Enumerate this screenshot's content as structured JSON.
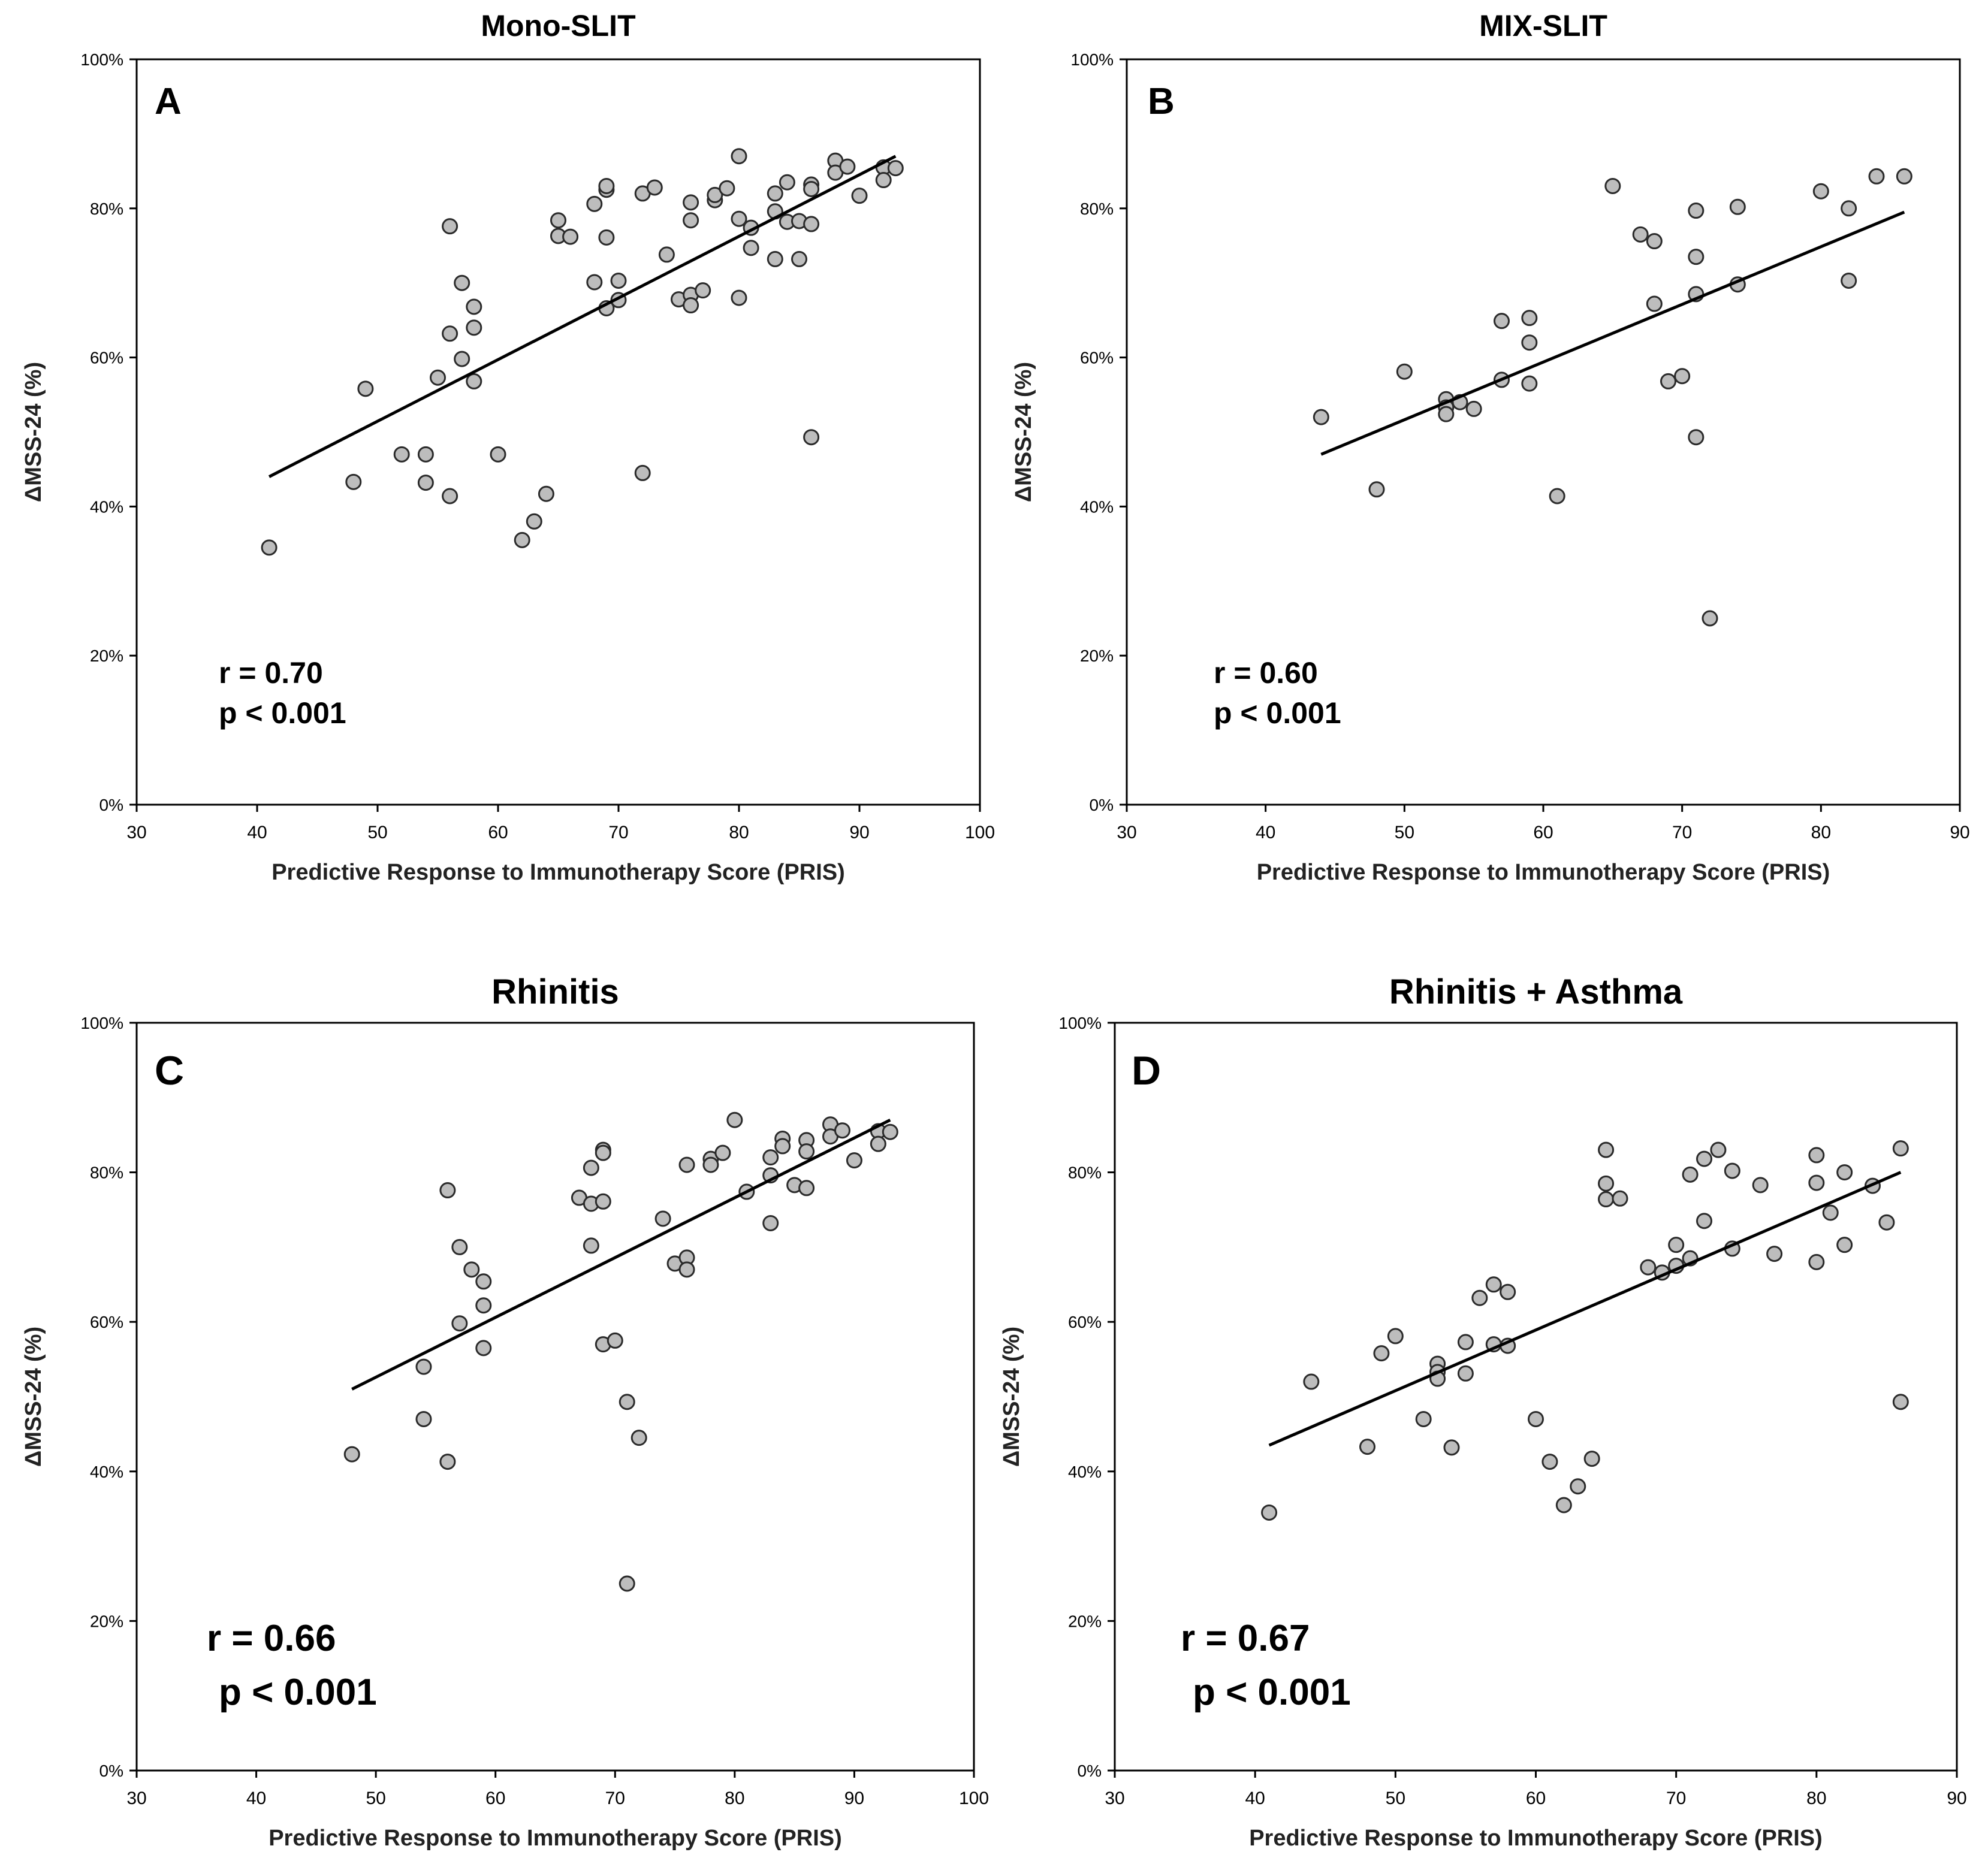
{
  "figure_name": "pris-correlation-figure",
  "chart_data": [
    {
      "id": "A",
      "type": "scatter",
      "title": "Mono-SLIT",
      "panel_letter": "A",
      "xlabel": "Predictive Response to Immunotherapy Score (PRIS)",
      "ylabel": "ΔMSS-24 (%)",
      "xlim": [
        30,
        100
      ],
      "ylim": [
        0,
        100
      ],
      "xticks": [
        30,
        40,
        50,
        60,
        70,
        80,
        90,
        100
      ],
      "yticks": [
        0,
        20,
        40,
        60,
        80,
        100
      ],
      "ytick_labels": [
        "0%",
        "20%",
        "40%",
        "60%",
        "80%",
        "100%"
      ],
      "stat_r": "r = 0.70",
      "stat_p": "p < 0.001",
      "trendline": {
        "x": [
          41,
          93
        ],
        "y": [
          44,
          87
        ]
      },
      "points": [
        [
          41,
          34.5
        ],
        [
          48,
          43.3
        ],
        [
          49,
          55.8
        ],
        [
          52,
          47
        ],
        [
          54,
          47
        ],
        [
          54,
          43.2
        ],
        [
          55,
          57.3
        ],
        [
          56,
          41.4
        ],
        [
          56,
          63.2
        ],
        [
          56,
          77.6
        ],
        [
          57,
          59.8
        ],
        [
          57,
          70
        ],
        [
          58,
          56.8
        ],
        [
          58,
          64
        ],
        [
          58,
          66.8
        ],
        [
          60,
          47
        ],
        [
          62,
          35.5
        ],
        [
          63,
          38
        ],
        [
          64,
          41.7
        ],
        [
          65,
          78.4
        ],
        [
          65,
          76.3
        ],
        [
          66,
          76.2
        ],
        [
          68,
          80.6
        ],
        [
          68,
          70.1
        ],
        [
          69,
          82.5
        ],
        [
          69,
          83
        ],
        [
          69,
          76.1
        ],
        [
          69,
          66.6
        ],
        [
          70,
          67.7
        ],
        [
          70,
          70.3
        ],
        [
          72,
          44.5
        ],
        [
          72,
          82
        ],
        [
          73,
          82.8
        ],
        [
          74,
          73.8
        ],
        [
          75,
          67.8
        ],
        [
          76,
          78.4
        ],
        [
          76,
          80.8
        ],
        [
          76,
          68.4
        ],
        [
          76,
          67
        ],
        [
          77,
          69
        ],
        [
          78,
          81.1
        ],
        [
          78,
          81.8
        ],
        [
          79,
          82.7
        ],
        [
          80,
          87
        ],
        [
          80,
          78.6
        ],
        [
          80,
          68
        ],
        [
          81,
          77.4
        ],
        [
          81,
          74.7
        ],
        [
          83,
          82
        ],
        [
          83,
          79.6
        ],
        [
          83,
          73.2
        ],
        [
          84,
          83.5
        ],
        [
          84,
          78.2
        ],
        [
          85,
          78.3
        ],
        [
          85,
          73.2
        ],
        [
          86,
          83.2
        ],
        [
          86,
          82.6
        ],
        [
          86,
          77.9
        ],
        [
          86,
          49.3
        ],
        [
          88,
          86.4
        ],
        [
          88,
          84.8
        ],
        [
          89,
          85.6
        ],
        [
          90,
          81.7
        ],
        [
          92,
          85.5
        ],
        [
          92,
          83.8
        ],
        [
          93,
          85.4
        ]
      ]
    },
    {
      "id": "B",
      "type": "scatter",
      "title": "MIX-SLIT",
      "panel_letter": "B",
      "xlabel": "Predictive Response to Immunotherapy Score (PRIS)",
      "ylabel": "ΔMSS-24 (%)",
      "xlim": [
        30,
        90
      ],
      "ylim": [
        0,
        100
      ],
      "xticks": [
        30,
        40,
        50,
        60,
        70,
        80,
        90
      ],
      "yticks": [
        0,
        20,
        40,
        60,
        80,
        100
      ],
      "ytick_labels": [
        "0%",
        "20%",
        "40%",
        "60%",
        "80%",
        "100%"
      ],
      "stat_r": "r = 0.60",
      "stat_p": "p < 0.001",
      "trendline": {
        "x": [
          44,
          86
        ],
        "y": [
          47,
          79.5
        ]
      },
      "points": [
        [
          44,
          52
        ],
        [
          48,
          42.3
        ],
        [
          50,
          58.1
        ],
        [
          53,
          54.4
        ],
        [
          53,
          53.3
        ],
        [
          53,
          52.4
        ],
        [
          54,
          54
        ],
        [
          55,
          53.1
        ],
        [
          57,
          64.9
        ],
        [
          57,
          57
        ],
        [
          59,
          65.3
        ],
        [
          59,
          62
        ],
        [
          59,
          56.5
        ],
        [
          61,
          41.4
        ],
        [
          65,
          83
        ],
        [
          67,
          76.5
        ],
        [
          68,
          75.6
        ],
        [
          68,
          67.2
        ],
        [
          69,
          56.8
        ],
        [
          70,
          57.5
        ],
        [
          71,
          79.7
        ],
        [
          71,
          73.5
        ],
        [
          71,
          68.5
        ],
        [
          71,
          49.3
        ],
        [
          72,
          25
        ],
        [
          74,
          80.2
        ],
        [
          74,
          69.8
        ],
        [
          80,
          82.3
        ],
        [
          82,
          80
        ],
        [
          82,
          70.3
        ],
        [
          84,
          84.3
        ],
        [
          86,
          84.3
        ]
      ]
    },
    {
      "id": "C",
      "type": "scatter",
      "title": "Rhinitis",
      "panel_letter": "C",
      "xlabel": "Predictive Response to Immunotherapy Score (PRIS)",
      "ylabel": "ΔMSS-24 (%)",
      "xlim": [
        30,
        100
      ],
      "ylim": [
        0,
        100
      ],
      "xticks": [
        30,
        40,
        50,
        60,
        70,
        80,
        90,
        100
      ],
      "yticks": [
        0,
        20,
        40,
        60,
        80,
        100
      ],
      "ytick_labels": [
        "0%",
        "20%",
        "40%",
        "60%",
        "80%",
        "100%"
      ],
      "stat_r": "r = 0.66",
      "stat_p": "p < 0.001",
      "trendline": {
        "x": [
          48,
          93
        ],
        "y": [
          51,
          87
        ]
      },
      "points": [
        [
          48,
          42.3
        ],
        [
          54,
          54
        ],
        [
          54,
          47
        ],
        [
          56,
          77.6
        ],
        [
          56,
          41.3
        ],
        [
          57,
          70
        ],
        [
          57,
          59.8
        ],
        [
          58,
          67
        ],
        [
          59,
          65.4
        ],
        [
          59,
          62.2
        ],
        [
          59,
          56.5
        ],
        [
          67,
          76.6
        ],
        [
          68,
          80.6
        ],
        [
          68,
          75.8
        ],
        [
          68,
          70.2
        ],
        [
          69,
          83
        ],
        [
          69,
          82.6
        ],
        [
          69,
          76.1
        ],
        [
          69,
          57
        ],
        [
          70,
          57.5
        ],
        [
          71,
          49.3
        ],
        [
          71,
          25
        ],
        [
          72,
          44.5
        ],
        [
          74,
          73.8
        ],
        [
          75,
          67.8
        ],
        [
          76,
          81
        ],
        [
          76,
          68.6
        ],
        [
          76,
          67
        ],
        [
          78,
          81.8
        ],
        [
          78,
          81
        ],
        [
          79,
          82.6
        ],
        [
          80,
          87
        ],
        [
          81,
          77.4
        ],
        [
          83,
          82
        ],
        [
          83,
          79.6
        ],
        [
          83,
          73.2
        ],
        [
          84,
          84.5
        ],
        [
          84,
          83.5
        ],
        [
          85,
          78.3
        ],
        [
          86,
          84.3
        ],
        [
          86,
          82.8
        ],
        [
          86,
          77.9
        ],
        [
          88,
          86.4
        ],
        [
          88,
          84.8
        ],
        [
          89,
          85.6
        ],
        [
          90,
          81.6
        ],
        [
          92,
          85.5
        ],
        [
          92,
          83.8
        ],
        [
          93,
          85.4
        ]
      ]
    },
    {
      "id": "D",
      "type": "scatter",
      "title": "Rhinitis + Asthma",
      "panel_letter": "D",
      "xlabel": "Predictive Response to Immunotherapy Score (PRIS)",
      "ylabel": "ΔMSS-24 (%)",
      "xlim": [
        30,
        90
      ],
      "ylim": [
        0,
        100
      ],
      "xticks": [
        30,
        40,
        50,
        60,
        70,
        80,
        90
      ],
      "yticks": [
        0,
        20,
        40,
        60,
        80,
        100
      ],
      "ytick_labels": [
        "0%",
        "20%",
        "40%",
        "60%",
        "80%",
        "100%"
      ],
      "stat_r": "r = 0.67",
      "stat_p": "p < 0.001",
      "trendline": {
        "x": [
          41,
          86
        ],
        "y": [
          43.5,
          80
        ]
      },
      "points": [
        [
          41,
          34.5
        ],
        [
          44,
          52
        ],
        [
          48,
          43.3
        ],
        [
          49,
          55.8
        ],
        [
          50,
          58.1
        ],
        [
          52,
          47
        ],
        [
          53,
          54.4
        ],
        [
          53,
          53.3
        ],
        [
          53,
          52.4
        ],
        [
          54,
          43.2
        ],
        [
          55,
          57.3
        ],
        [
          55,
          53.1
        ],
        [
          56,
          63.2
        ],
        [
          57,
          65
        ],
        [
          57,
          57
        ],
        [
          58,
          64
        ],
        [
          58,
          56.8
        ],
        [
          60,
          47
        ],
        [
          61,
          41.3
        ],
        [
          62,
          35.5
        ],
        [
          63,
          38
        ],
        [
          64,
          41.7
        ],
        [
          65,
          83
        ],
        [
          65,
          78.5
        ],
        [
          65,
          76.4
        ],
        [
          66,
          76.5
        ],
        [
          68,
          67.3
        ],
        [
          69,
          66.6
        ],
        [
          70,
          70.3
        ],
        [
          70,
          67.5
        ],
        [
          71,
          79.7
        ],
        [
          71,
          68.5
        ],
        [
          72,
          81.8
        ],
        [
          72,
          73.5
        ],
        [
          73,
          83
        ],
        [
          74,
          80.2
        ],
        [
          74,
          69.8
        ],
        [
          76,
          78.3
        ],
        [
          77,
          69.1
        ],
        [
          80,
          82.3
        ],
        [
          80,
          78.6
        ],
        [
          80,
          68
        ],
        [
          81,
          74.6
        ],
        [
          82,
          80
        ],
        [
          82,
          70.3
        ],
        [
          84,
          78.2
        ],
        [
          85,
          73.3
        ],
        [
          86,
          83.2
        ],
        [
          86,
          49.3
        ]
      ]
    }
  ]
}
